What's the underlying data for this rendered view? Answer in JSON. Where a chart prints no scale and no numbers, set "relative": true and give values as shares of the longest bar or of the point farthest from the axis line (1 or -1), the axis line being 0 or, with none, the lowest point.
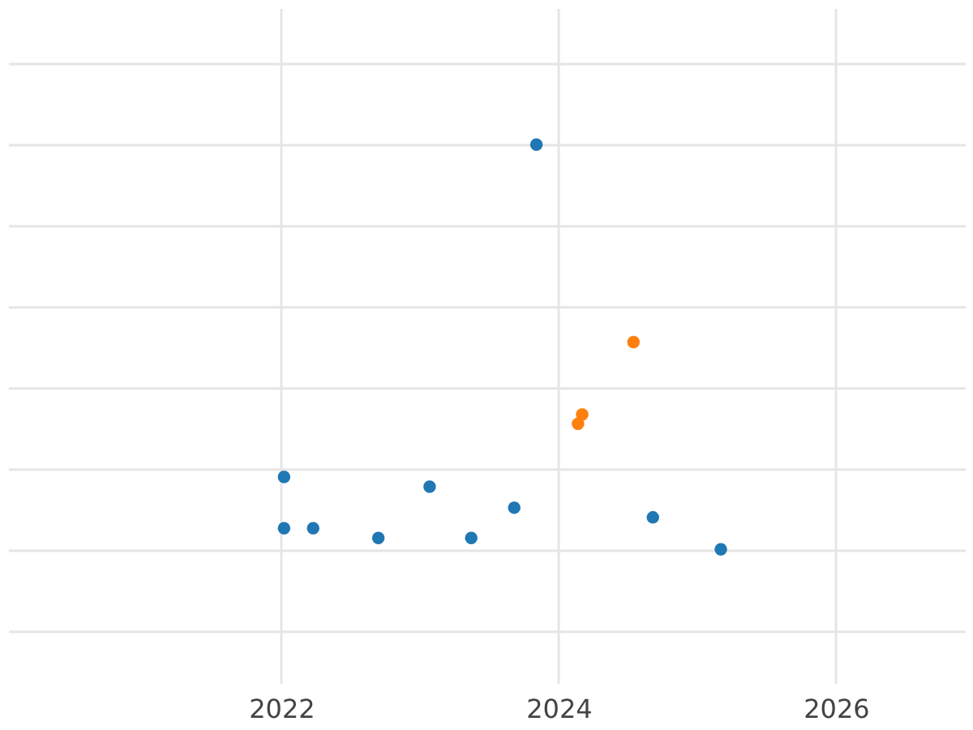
{
  "chart_data": {
    "type": "scatter",
    "relative": true,
    "xlim": [
      2020.03,
      2026.93
    ],
    "xticks": [
      2022,
      2024,
      2026
    ],
    "grid": true,
    "marker": "circle",
    "tick_labels": "x",
    "series": [
      {
        "color": "#1f77b4",
        "x": [
          2022.02,
          2022.02,
          2022.23,
          2022.7,
          2023.07,
          2023.37,
          2023.68,
          2023.84,
          2024.68,
          2025.17
        ],
        "values": [
          0.179,
          0.052,
          0.052,
          0.028,
          0.155,
          0.028,
          0.103,
          1,
          0.079,
          0
        ]
      },
      {
        "color": "#ff7f0e",
        "x": [
          2024.14,
          2024.17,
          2024.54
        ],
        "values": [
          0.31,
          0.333,
          0.512
        ]
      }
    ]
  }
}
